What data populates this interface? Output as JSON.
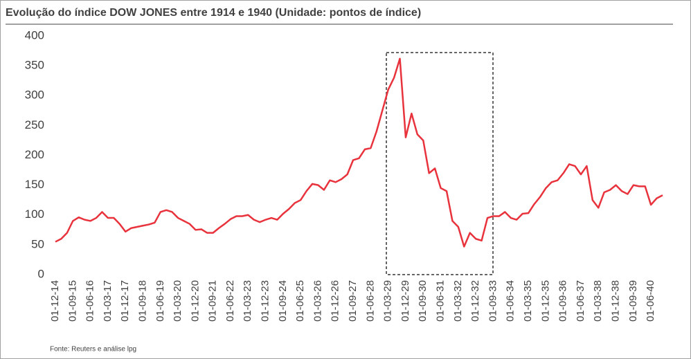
{
  "chart_data": {
    "type": "line",
    "title": "Evolução do índice DOW JONES entre 1914 e 1940 (Unidade: pontos de índice)",
    "source": "Fonte: Reuters e análise lpg",
    "categories": [
      "01-12-14",
      null,
      null,
      "01-09-15",
      null,
      null,
      "01-06-16",
      null,
      null,
      "01-03-17",
      null,
      null,
      "01-12-17",
      null,
      null,
      "01-09-18",
      null,
      null,
      "01-06-19",
      null,
      null,
      "01-03-20",
      null,
      null,
      "01-12-20",
      null,
      null,
      "01-09-21",
      null,
      null,
      "01-06-22",
      null,
      null,
      "01-03-23",
      null,
      null,
      "01-12-23",
      null,
      null,
      "01-09-24",
      null,
      null,
      "01-06-25",
      null,
      null,
      "01-03-26",
      null,
      null,
      "01-12-26",
      null,
      null,
      "01-09-27",
      null,
      null,
      "01-06-28",
      null,
      null,
      "01-03-29",
      null,
      null,
      "01-12-29",
      null,
      null,
      "01-09-30",
      null,
      null,
      "01-06-31",
      null,
      null,
      "01-03-32",
      null,
      null,
      "01-12-32",
      null,
      null,
      "01-09-33",
      null,
      null,
      "01-06-34",
      null,
      null,
      "01-03-35",
      null,
      null,
      "01-12-35",
      null,
      null,
      "01-09-36",
      null,
      null,
      "01-06-37",
      null,
      null,
      "01-03-38",
      null,
      null,
      "01-12-38",
      null,
      null,
      "01-09-39",
      null,
      null,
      "01-06-40",
      null,
      null
    ],
    "values": [
      55,
      60,
      70,
      90,
      96,
      92,
      90,
      95,
      105,
      95,
      95,
      85,
      72,
      78,
      80,
      82,
      84,
      87,
      105,
      108,
      105,
      95,
      90,
      85,
      75,
      76,
      70,
      70,
      78,
      85,
      93,
      98,
      98,
      100,
      92,
      88,
      92,
      95,
      92,
      102,
      110,
      120,
      125,
      140,
      152,
      150,
      142,
      158,
      155,
      160,
      168,
      192,
      195,
      210,
      212,
      240,
      275,
      310,
      330,
      362,
      230,
      270,
      235,
      225,
      170,
      178,
      145,
      140,
      90,
      80,
      47,
      70,
      60,
      57,
      95,
      98,
      98,
      105,
      95,
      92,
      102,
      103,
      118,
      130,
      145,
      155,
      158,
      170,
      185,
      182,
      168,
      182,
      125,
      112,
      138,
      142,
      150,
      140,
      135,
      150,
      148,
      148,
      117,
      128,
      133
    ],
    "color": "#e8323c",
    "ylim": [
      0,
      400
    ],
    "yticks": [
      0,
      50,
      100,
      150,
      200,
      250,
      300,
      350,
      400
    ]
  }
}
